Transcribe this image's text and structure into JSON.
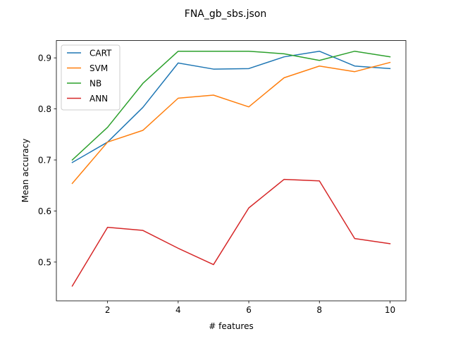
{
  "chart_data": {
    "type": "line",
    "title": "FNA_gb_sbs.json",
    "xlabel": "# features",
    "ylabel": "Mean accuracy",
    "x": [
      1,
      2,
      3,
      4,
      5,
      6,
      7,
      8,
      9,
      10
    ],
    "xlim": [
      0.55,
      10.45
    ],
    "ylim": [
      0.424,
      0.934
    ],
    "xticks": [
      2,
      4,
      6,
      8,
      10
    ],
    "yticks": [
      0.5,
      0.6,
      0.7,
      0.8,
      0.9
    ],
    "xtick_labels": [
      "2",
      "4",
      "6",
      "8",
      "10"
    ],
    "ytick_labels": [
      "0.5",
      "0.6",
      "0.7",
      "0.8",
      "0.9"
    ],
    "grid": false,
    "legend_position": "top-left",
    "series": [
      {
        "name": "CART",
        "color": "#1f77b4",
        "values": [
          0.695,
          0.735,
          0.803,
          0.89,
          0.878,
          0.879,
          0.902,
          0.913,
          0.884,
          0.879
        ]
      },
      {
        "name": "SVM",
        "color": "#ff7f0e",
        "values": [
          0.654,
          0.735,
          0.758,
          0.821,
          0.827,
          0.804,
          0.861,
          0.884,
          0.873,
          0.891
        ]
      },
      {
        "name": "NB",
        "color": "#2ca02c",
        "values": [
          0.7,
          0.764,
          0.85,
          0.913,
          0.913,
          0.913,
          0.908,
          0.895,
          0.913,
          0.902
        ]
      },
      {
        "name": "ANN",
        "color": "#d62728",
        "values": [
          0.453,
          0.568,
          0.562,
          0.527,
          0.495,
          0.606,
          0.662,
          0.659,
          0.546,
          0.536
        ]
      }
    ]
  }
}
